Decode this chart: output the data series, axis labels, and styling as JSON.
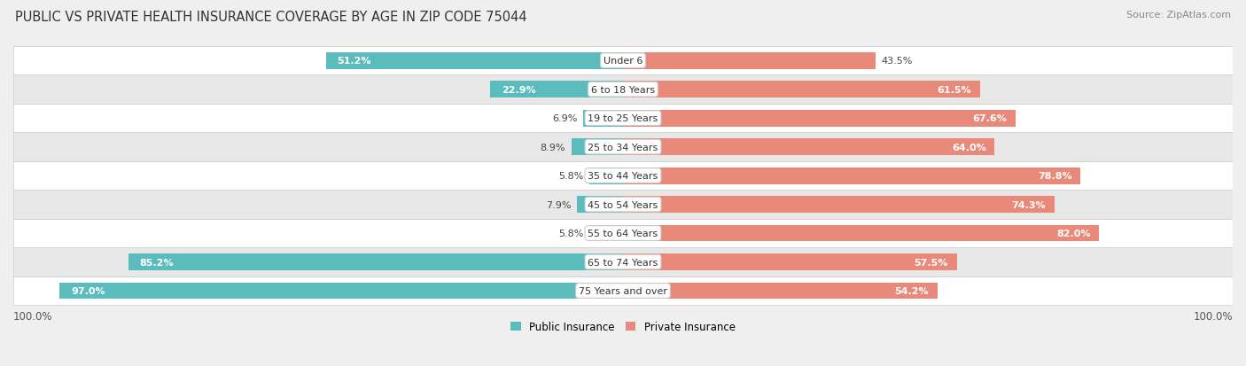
{
  "title": "PUBLIC VS PRIVATE HEALTH INSURANCE COVERAGE BY AGE IN ZIP CODE 75044",
  "source": "Source: ZipAtlas.com",
  "categories": [
    "Under 6",
    "6 to 18 Years",
    "19 to 25 Years",
    "25 to 34 Years",
    "35 to 44 Years",
    "45 to 54 Years",
    "55 to 64 Years",
    "65 to 74 Years",
    "75 Years and over"
  ],
  "public_values": [
    51.2,
    22.9,
    6.9,
    8.9,
    5.8,
    7.9,
    5.8,
    85.2,
    97.0
  ],
  "private_values": [
    43.5,
    61.5,
    67.6,
    64.0,
    78.8,
    74.3,
    82.0,
    57.5,
    54.2
  ],
  "public_color": "#5bbcbd",
  "private_color": "#e8897a",
  "background_color": "#efefef",
  "row_bg_color": "#ffffff",
  "row_alt_color": "#e8e8e8",
  "bar_height": 0.58,
  "legend_labels": [
    "Public Insurance",
    "Private Insurance"
  ],
  "public_label_inside_threshold": 20,
  "private_label_inside_threshold": 44
}
